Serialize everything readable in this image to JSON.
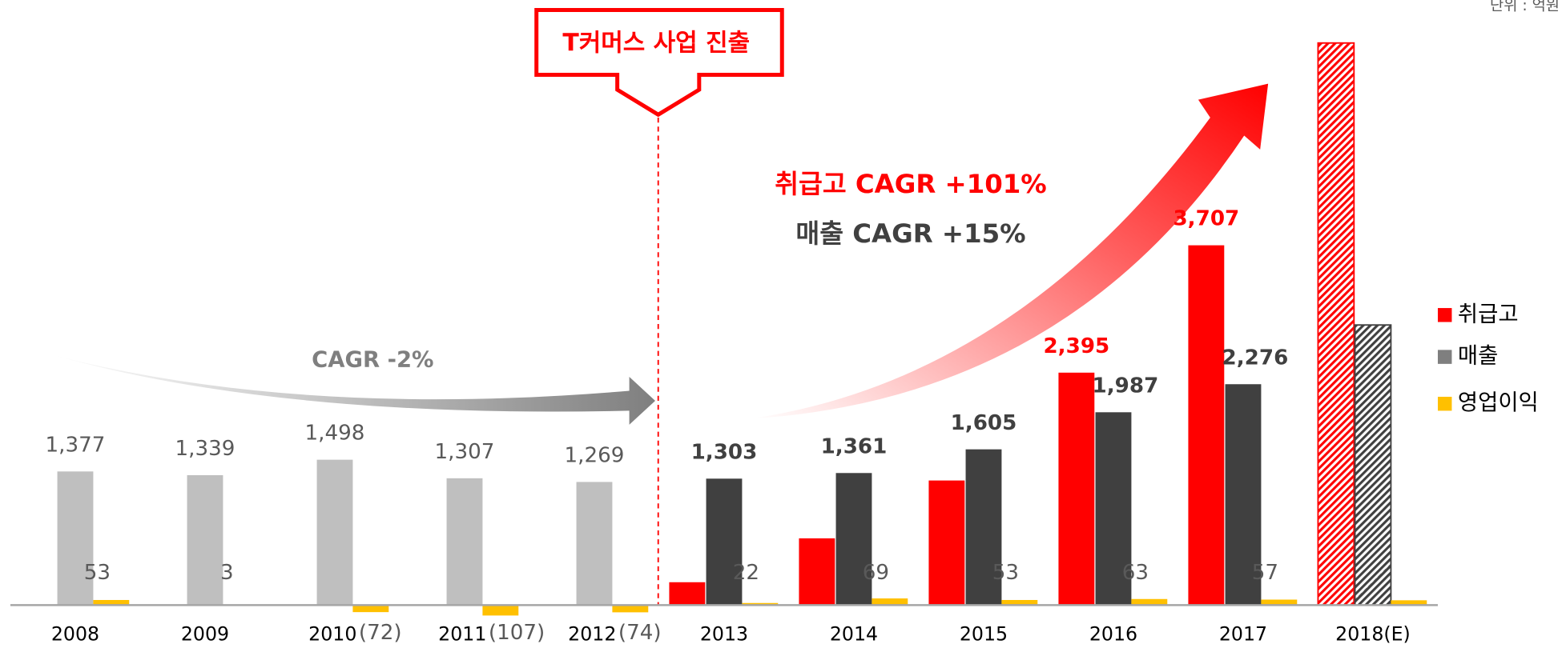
{
  "chart_data": {
    "type": "bar",
    "unit_note": "단위 : 억원",
    "annotations": [
      "T커머스 사업 진출",
      "취급고 CAGR +101%",
      "매출 CAGR +15%",
      "CAGR -2%"
    ],
    "categories": [
      "2008",
      "2009",
      "2010",
      "2011",
      "2012",
      "2013",
      "2014",
      "2015",
      "2016",
      "2017",
      "2018(E)"
    ],
    "series": [
      {
        "name": "취급고",
        "color": "#ff0000",
        "values": [
          null,
          null,
          null,
          null,
          null,
          236,
          688,
          1284,
          2395,
          3707,
          5791
        ],
        "value_labels": [
          null,
          null,
          null,
          null,
          null,
          null,
          null,
          null,
          "2,395",
          "3,707",
          null
        ],
        "hatch": [
          false,
          false,
          false,
          false,
          false,
          false,
          false,
          false,
          false,
          false,
          true
        ]
      },
      {
        "name": "매출",
        "color": "#404040",
        "colors": [
          "#bfbfbf",
          "#bfbfbf",
          "#bfbfbf",
          "#bfbfbf",
          "#bfbfbf",
          "#404040",
          "#404040",
          "#404040",
          "#404040",
          "#404040",
          "#404040"
        ],
        "values": [
          1377,
          1339,
          1498,
          1307,
          1269,
          1303,
          1361,
          1605,
          1987,
          2276,
          2886
        ],
        "value_labels": [
          "1,377",
          "1,339",
          "1,498",
          "1,307",
          "1,269",
          "1,303",
          "1,361",
          "1,605",
          "1,987",
          "2,276",
          null
        ],
        "hatch": [
          false,
          false,
          false,
          false,
          false,
          false,
          false,
          false,
          false,
          false,
          true
        ]
      },
      {
        "name": "영업이익",
        "color": "#ffc000",
        "values": [
          53,
          3,
          -72,
          -107,
          -74,
          22,
          69,
          53,
          63,
          57,
          50
        ],
        "value_labels": [
          "53",
          "3",
          "(72)",
          "(107)",
          "(74)",
          "22",
          "69",
          "53",
          "63",
          "57",
          null
        ]
      }
    ],
    "ylim": [
      0,
      6200
    ]
  }
}
